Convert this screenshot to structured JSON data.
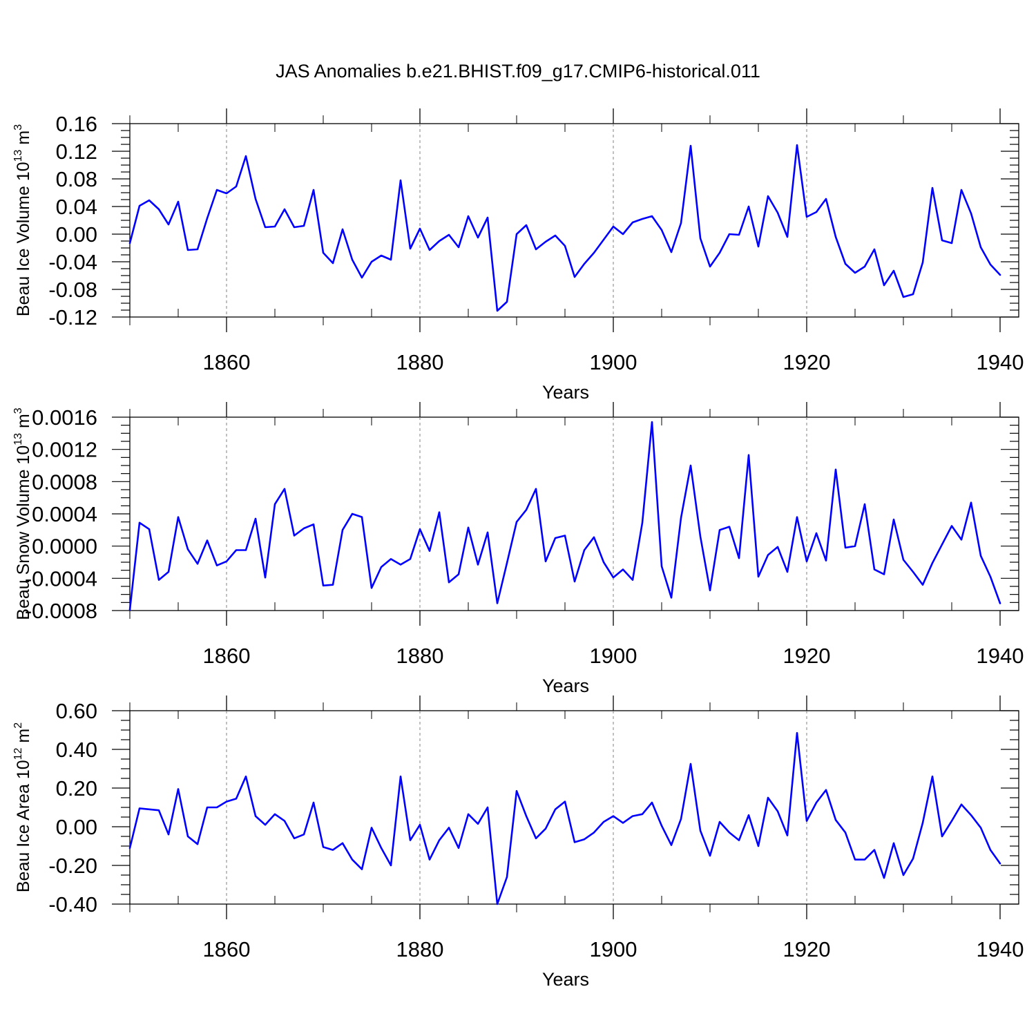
{
  "title": "JAS Anomalies b.e21.BHIST.f09_g17.CMIP6-historical.011",
  "colors": {
    "series": "#0000ff",
    "axis": "#000000",
    "grid": "#808080"
  },
  "chart_data": [
    {
      "type": "line",
      "xlabel": "Years",
      "ylabel": {
        "text": "Beau Ice Volume 10",
        "sup": "13",
        "unit": " m",
        "unit_sup": "3"
      },
      "xlim": [
        1850,
        1940
      ],
      "ylim": [
        -0.12,
        0.16
      ],
      "xticks": [
        1860,
        1880,
        1900,
        1920,
        1940
      ],
      "yticks": [
        -0.12,
        -0.08,
        -0.04,
        0.0,
        0.04,
        0.08,
        0.12,
        0.16
      ],
      "yticklabels": [
        "-0.12",
        "-0.08",
        "-0.04",
        "0.00",
        "0.04",
        "0.08",
        "0.12",
        "0.16"
      ],
      "grid_x": "dashed",
      "x_start": 1850,
      "y": [
        -0.013,
        0.041,
        0.049,
        0.036,
        0.014,
        0.047,
        -0.023,
        -0.022,
        0.023,
        0.064,
        0.059,
        0.069,
        0.113,
        0.051,
        0.01,
        0.011,
        0.036,
        0.01,
        0.012,
        0.064,
        -0.027,
        -0.042,
        0.007,
        -0.037,
        -0.063,
        -0.04,
        -0.031,
        -0.037,
        0.078,
        -0.021,
        0.008,
        -0.023,
        -0.01,
        -0.001,
        -0.019,
        0.026,
        -0.005,
        0.024,
        -0.111,
        -0.098,
        0.0,
        0.013,
        -0.022,
        -0.011,
        -0.002,
        -0.017,
        -0.062,
        -0.043,
        -0.027,
        -0.008,
        0.011,
        0.0,
        0.017,
        0.022,
        0.026,
        0.006,
        -0.026,
        0.016,
        0.128,
        -0.006,
        -0.047,
        -0.027,
        0.0,
        -0.001,
        0.04,
        -0.018,
        0.055,
        0.031,
        -0.004,
        0.129,
        0.025,
        0.032,
        0.051,
        -0.004,
        -0.043,
        -0.056,
        -0.047,
        -0.022,
        -0.074,
        -0.053,
        -0.091,
        -0.087,
        -0.041,
        0.067,
        -0.009,
        -0.013,
        0.064,
        0.03,
        -0.019,
        -0.044,
        -0.059
      ]
    },
    {
      "type": "line",
      "xlabel": "Years",
      "ylabel": {
        "text": "Beau Snow Volume 10",
        "sup": "13",
        "unit": " m",
        "unit_sup": "3"
      },
      "xlim": [
        1850,
        1940
      ],
      "ylim": [
        -0.0008,
        0.0016
      ],
      "xticks": [
        1860,
        1880,
        1900,
        1920,
        1940
      ],
      "yticks": [
        -0.0008,
        -0.0004,
        0.0,
        0.0004,
        0.0008,
        0.0012,
        0.0016
      ],
      "yticklabels": [
        "-0.0008",
        "-0.0004",
        "0.0000",
        "0.0004",
        "0.0008",
        "0.0012",
        "0.0016"
      ],
      "grid_x": "dashed",
      "x_start": 1850,
      "y": [
        -0.00079,
        0.00029,
        0.00021,
        -0.00042,
        -0.00032,
        0.00036,
        -4e-05,
        -0.00022,
        7e-05,
        -0.00024,
        -0.00019,
        -5e-05,
        -5e-05,
        0.00034,
        -0.00039,
        0.00052,
        0.00071,
        0.00013,
        0.00022,
        0.00027,
        -0.00049,
        -0.00048,
        0.0002,
        0.0004,
        0.00036,
        -0.00052,
        -0.00026,
        -0.00016,
        -0.00023,
        -0.00016,
        0.00021,
        -6e-05,
        0.00042,
        -0.00045,
        -0.00035,
        0.00023,
        -0.00023,
        0.00017,
        -0.00071,
        -0.00021,
        0.0003,
        0.00045,
        0.00071,
        -0.00019,
        0.0001,
        0.00013,
        -0.00044,
        -5e-05,
        0.00011,
        -0.0002,
        -0.00039,
        -0.00029,
        -0.00042,
        0.00029,
        0.00154,
        -0.00025,
        -0.00064,
        0.00035,
        0.001,
        0.00012,
        -0.00055,
        0.0002,
        0.00024,
        -0.00015,
        0.00113,
        -0.00038,
        -0.00011,
        -1e-05,
        -0.00032,
        0.00036,
        -0.00019,
        0.00016,
        -0.00018,
        0.00095,
        -2e-05,
        0.0,
        0.00052,
        -0.00029,
        -0.00035,
        0.00033,
        -0.00017,
        -0.00032,
        -0.00048,
        -0.00021,
        2e-05,
        0.00025,
        8e-05,
        0.00054,
        -0.00012,
        -0.00038,
        -0.00071
      ]
    },
    {
      "type": "line",
      "xlabel": "Years",
      "ylabel": {
        "text": "Beau Ice Area 10",
        "sup": "12",
        "unit": " m",
        "unit_sup": "2"
      },
      "xlim": [
        1850,
        1940
      ],
      "ylim": [
        -0.4,
        0.6
      ],
      "xticks": [
        1860,
        1880,
        1900,
        1920,
        1940
      ],
      "yticks": [
        -0.4,
        -0.2,
        0.0,
        0.2,
        0.4,
        0.6
      ],
      "yticklabels": [
        "-0.40",
        "-0.20",
        "0.00",
        "0.20",
        "0.40",
        "0.60"
      ],
      "grid_x": "dashed",
      "x_start": 1850,
      "y": [
        -0.11,
        0.095,
        0.09,
        0.085,
        -0.04,
        0.195,
        -0.05,
        -0.09,
        0.1,
        0.1,
        0.13,
        0.145,
        0.26,
        0.055,
        0.01,
        0.065,
        0.03,
        -0.06,
        -0.04,
        0.125,
        -0.105,
        -0.12,
        -0.085,
        -0.17,
        -0.22,
        -0.005,
        -0.11,
        -0.2,
        0.26,
        -0.07,
        0.01,
        -0.17,
        -0.07,
        -0.005,
        -0.11,
        0.065,
        0.015,
        0.1,
        -0.4,
        -0.26,
        0.185,
        0.055,
        -0.06,
        -0.01,
        0.09,
        0.13,
        -0.08,
        -0.065,
        -0.03,
        0.025,
        0.055,
        0.02,
        0.055,
        0.065,
        0.125,
        0.005,
        -0.095,
        0.04,
        0.325,
        -0.02,
        -0.15,
        0.025,
        -0.03,
        -0.07,
        0.06,
        -0.1,
        0.15,
        0.08,
        -0.045,
        0.485,
        0.03,
        0.125,
        0.19,
        0.035,
        -0.03,
        -0.17,
        -0.17,
        -0.12,
        -0.265,
        -0.085,
        -0.25,
        -0.165,
        0.02,
        0.26,
        -0.05,
        0.03,
        0.115,
        0.06,
        -0.005,
        -0.12,
        -0.19
      ]
    }
  ]
}
